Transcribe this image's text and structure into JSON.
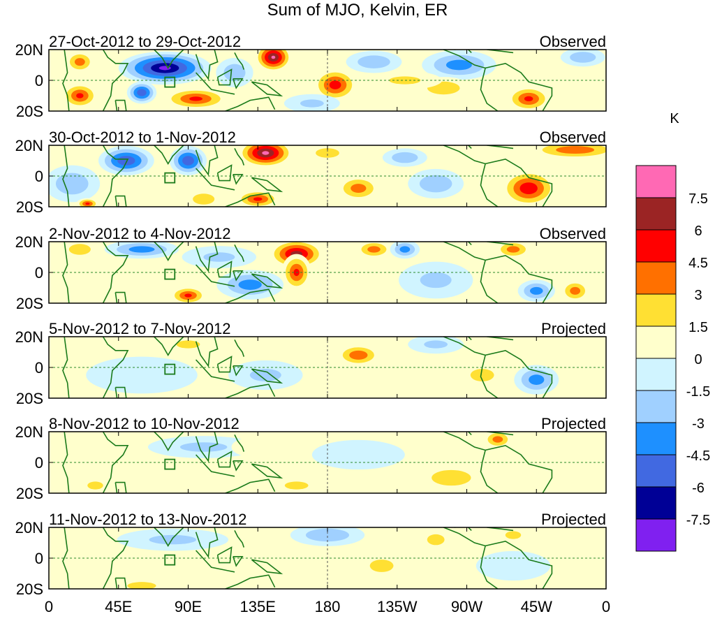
{
  "chart_data": {
    "type": "heatmap",
    "title": "Sum of MJO, Kelvin, ER",
    "colorbar": {
      "label": "K",
      "levels": [
        "-7.5",
        "-6",
        "-4.5",
        "-3",
        "-1.5",
        "0",
        "1.5",
        "3",
        "4.5",
        "6",
        "7.5"
      ],
      "colors": [
        "#8020f0",
        "#000096",
        "#4169e1",
        "#1e90ff",
        "#a0d0ff",
        "#d0f4ff",
        "#ffffcc",
        "#ffe033",
        "#ff7000",
        "#ff0000",
        "#9b2424",
        "#ff69b4"
      ]
    },
    "x_ticks": [
      "0",
      "45E",
      "90E",
      "135E",
      "180",
      "135W",
      "90W",
      "45W",
      "0"
    ],
    "x_tick_values": [
      0,
      45,
      90,
      135,
      180,
      225,
      270,
      315,
      360
    ],
    "y_ticks": [
      "20N",
      "0",
      "20S"
    ],
    "y_tick_values": [
      20,
      0,
      -20
    ],
    "feature_format": [
      "lon",
      "lat",
      "value_K",
      "half_width_lon",
      "half_height_lat"
    ],
    "panels": [
      {
        "date_range": "27-Oct-2012 to 29-Oct-2012",
        "status": "Observed",
        "features": [
          [
            75,
            8,
            -8,
            25,
            9
          ],
          [
            60,
            -8,
            -6,
            8,
            6
          ],
          [
            145,
            15,
            7.8,
            10,
            8
          ],
          [
            185,
            -3,
            5.5,
            12,
            9
          ],
          [
            310,
            -12,
            5,
            12,
            7
          ],
          [
            20,
            -10,
            5,
            10,
            7
          ],
          [
            20,
            12,
            4,
            8,
            6
          ],
          [
            95,
            -12,
            5,
            18,
            6
          ],
          [
            265,
            10,
            -4,
            20,
            8
          ],
          [
            255,
            -5,
            3,
            15,
            6
          ],
          [
            210,
            12,
            -3,
            15,
            6
          ],
          [
            120,
            5,
            -3,
            10,
            8
          ],
          [
            345,
            15,
            -3,
            12,
            5
          ],
          [
            170,
            -15,
            -2,
            15,
            5
          ],
          [
            230,
            0,
            2,
            20,
            5
          ]
        ]
      },
      {
        "date_range": "30-Oct-2012 to 1-Nov-2012",
        "status": "Observed",
        "features": [
          [
            140,
            15,
            8,
            15,
            8
          ],
          [
            50,
            10,
            -6,
            15,
            8
          ],
          [
            90,
            10,
            -6,
            10,
            8
          ],
          [
            310,
            -8,
            6,
            15,
            10
          ],
          [
            340,
            17,
            4.5,
            25,
            5
          ],
          [
            200,
            -8,
            4,
            12,
            7
          ],
          [
            135,
            -15,
            5,
            12,
            5
          ],
          [
            250,
            -5,
            -3,
            15,
            8
          ],
          [
            180,
            15,
            2,
            15,
            6
          ],
          [
            15,
            -5,
            -3,
            15,
            10
          ],
          [
            25,
            -18,
            5,
            6,
            3
          ],
          [
            100,
            -15,
            3,
            10,
            5
          ],
          [
            230,
            12,
            -3,
            12,
            5
          ]
        ]
      },
      {
        "date_range": "2-Nov-2012 to 4-Nov-2012",
        "status": "Observed",
        "features": [
          [
            160,
            12,
            7,
            15,
            8
          ],
          [
            160,
            0,
            5,
            8,
            10
          ],
          [
            90,
            -15,
            5,
            10,
            5
          ],
          [
            130,
            -8,
            -4,
            18,
            8
          ],
          [
            210,
            15,
            4,
            10,
            5
          ],
          [
            60,
            15,
            -4,
            20,
            5
          ],
          [
            230,
            15,
            -4,
            8,
            5
          ],
          [
            300,
            15,
            4,
            10,
            5
          ],
          [
            315,
            -12,
            -4,
            10,
            6
          ],
          [
            340,
            -12,
            4,
            8,
            6
          ],
          [
            20,
            15,
            3,
            10,
            5
          ],
          [
            250,
            -5,
            -2,
            20,
            10
          ],
          [
            110,
            10,
            -2,
            20,
            6
          ]
        ]
      },
      {
        "date_range": "5-Nov-2012 to 7-Nov-2012",
        "status": "Projected",
        "features": [
          [
            200,
            8,
            4.5,
            12,
            6
          ],
          [
            315,
            -8,
            -4,
            12,
            8
          ],
          [
            140,
            -5,
            -2,
            20,
            8
          ],
          [
            60,
            -5,
            -1.5,
            30,
            10
          ],
          [
            280,
            -5,
            2,
            15,
            8
          ],
          [
            250,
            15,
            -2,
            15,
            5
          ],
          [
            90,
            15,
            2,
            15,
            5
          ]
        ]
      },
      {
        "date_range": "8-Nov-2012 to 10-Nov-2012",
        "status": "Projected",
        "features": [
          [
            290,
            15,
            4,
            8,
            5
          ],
          [
            260,
            -10,
            2,
            25,
            10
          ],
          [
            160,
            -15,
            2,
            15,
            5
          ],
          [
            100,
            10,
            -2,
            30,
            6
          ],
          [
            200,
            5,
            -1.5,
            25,
            8
          ],
          [
            30,
            -15,
            2,
            10,
            5
          ],
          [
            130,
            10,
            1.5,
            10,
            5
          ]
        ]
      },
      {
        "date_range": "11-Nov-2012 to 13-Nov-2012",
        "status": "Projected",
        "features": [
          [
            180,
            15,
            -3,
            20,
            6
          ],
          [
            215,
            -5,
            2,
            15,
            8
          ],
          [
            250,
            12,
            3,
            8,
            5
          ],
          [
            60,
            -18,
            2.5,
            15,
            4
          ],
          [
            80,
            12,
            -2,
            30,
            6
          ],
          [
            300,
            -5,
            -1.5,
            20,
            8
          ],
          [
            300,
            15,
            2,
            10,
            5
          ]
        ]
      }
    ]
  }
}
